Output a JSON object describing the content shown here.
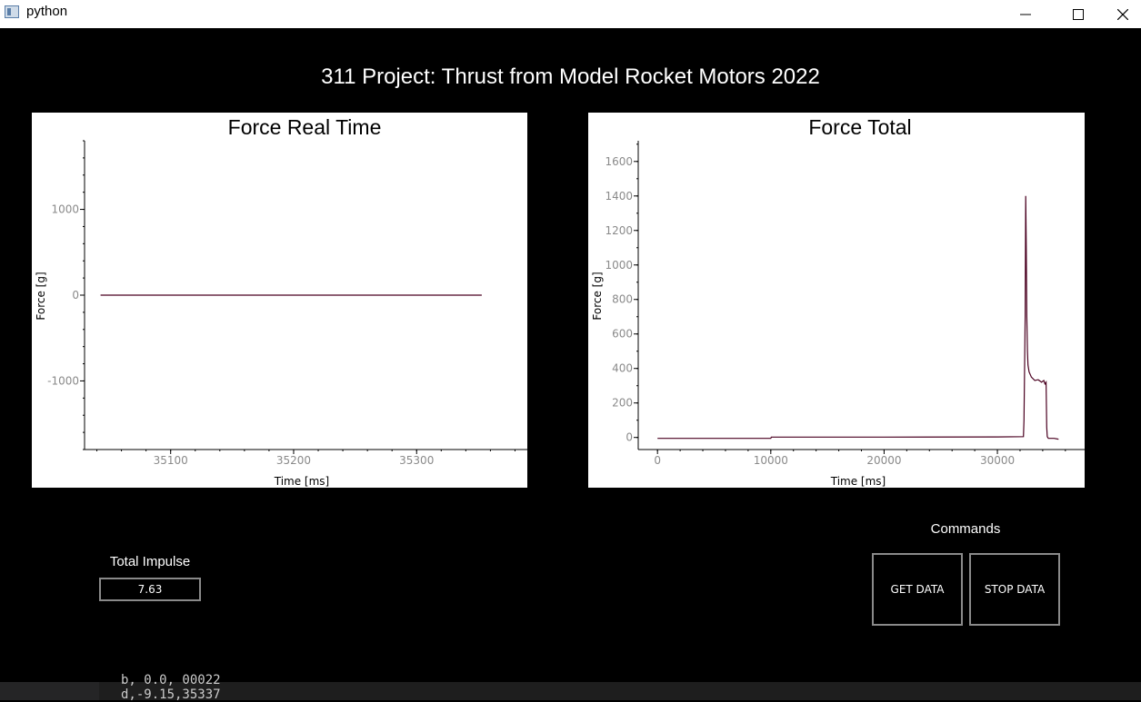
{
  "window": {
    "title": "python",
    "minimize_icon": "minimize-icon",
    "maximize_icon": "maximize-icon",
    "close_icon": "close-icon"
  },
  "app": {
    "title": "311 Project: Thrust from Model Rocket Motors 2022"
  },
  "colors": {
    "background": "#000000",
    "plot_bg": "#ffffff",
    "series": "#4a0020",
    "axis": "#000000",
    "tick_label": "#8a8a8a"
  },
  "chart_data": [
    {
      "type": "line",
      "title": "Force Real Time",
      "xlabel": "Time [ms]",
      "ylabel": "Force [g]",
      "xlim": [
        35030,
        35390
      ],
      "ylim": [
        -1800,
        1800
      ],
      "xticks": [
        35100,
        35200,
        35300
      ],
      "yticks": [
        -1000,
        0,
        1000
      ],
      "grid": false,
      "series": [
        {
          "x": [
            35043,
            35100,
            35150,
            35200,
            35250,
            35300,
            35353
          ],
          "y": [
            0,
            0,
            0,
            0,
            0,
            0,
            0
          ]
        }
      ]
    },
    {
      "type": "line",
      "title": "Force Total",
      "xlabel": "Time [ms]",
      "ylabel": "Force [g]",
      "xlim": [
        -1700,
        37700
      ],
      "ylim": [
        -70,
        1720
      ],
      "xticks": [
        0,
        10000,
        20000,
        30000
      ],
      "yticks": [
        0,
        200,
        400,
        600,
        800,
        1000,
        1200,
        1400,
        1600
      ],
      "grid": false,
      "series": [
        {
          "x": [
            0,
            10000,
            10050,
            20000,
            30000,
            32300,
            32350,
            32450,
            32500,
            32550,
            32600,
            32650,
            32700,
            32800,
            33000,
            33300,
            33600,
            33900,
            34100,
            34200,
            34300,
            34350,
            34400,
            34500,
            35000,
            35400
          ],
          "y": [
            -5,
            -5,
            2,
            2,
            3,
            5,
            100,
            700,
            1400,
            1100,
            700,
            500,
            420,
            380,
            350,
            330,
            335,
            320,
            330,
            310,
            320,
            60,
            5,
            -5,
            -5,
            -10
          ]
        }
      ]
    }
  ],
  "impulse": {
    "label": "Total Impulse",
    "value": "7.63"
  },
  "commands": {
    "label": "Commands",
    "get_data": "GET DATA",
    "stop_data": "STOP DATA"
  },
  "terminal": {
    "line1": "b, 0.0, 00022",
    "line2": "d,-9.15,35337"
  }
}
